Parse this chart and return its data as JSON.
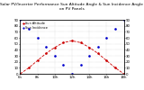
{
  "title": "Solar PV/Inverter Performance Sun Altitude Angle & Sun Incidence Angle on PV Panels",
  "x_values": [
    6,
    7,
    8,
    9,
    10,
    11,
    12,
    13,
    14,
    15,
    16,
    17,
    18
  ],
  "sun_altitude": [
    0,
    10,
    22,
    34,
    44,
    52,
    55,
    52,
    44,
    34,
    22,
    10,
    0
  ],
  "sun_incidence": [
    90,
    75,
    60,
    45,
    30,
    15,
    0,
    15,
    30,
    45,
    60,
    75,
    90
  ],
  "altitude_color": "#cc0000",
  "incidence_color": "#0000cc",
  "xlim": [
    6,
    18
  ],
  "ylim_left": [
    0,
    90
  ],
  "ylim_right": [
    0,
    90
  ],
  "xtick_labels": [
    "6h",
    "8h",
    "10h",
    "12h",
    "14h",
    "16h",
    "18h"
  ],
  "xtick_positions": [
    6,
    8,
    10,
    12,
    14,
    16,
    18
  ],
  "ytick_left": [
    0,
    10,
    20,
    30,
    40,
    50,
    60,
    70,
    80,
    90
  ],
  "ytick_right": [
    0,
    10,
    20,
    30,
    40,
    50,
    60,
    70,
    80,
    90
  ],
  "background_color": "#ffffff",
  "grid_color": "#888888",
  "title_fontsize": 3.2,
  "tick_fontsize": 2.8,
  "legend_fontsize": 2.5,
  "legend_labels": [
    "Sun Altitude",
    "Sun Incidence"
  ],
  "line_width": 0.6,
  "marker_size": 0.9
}
